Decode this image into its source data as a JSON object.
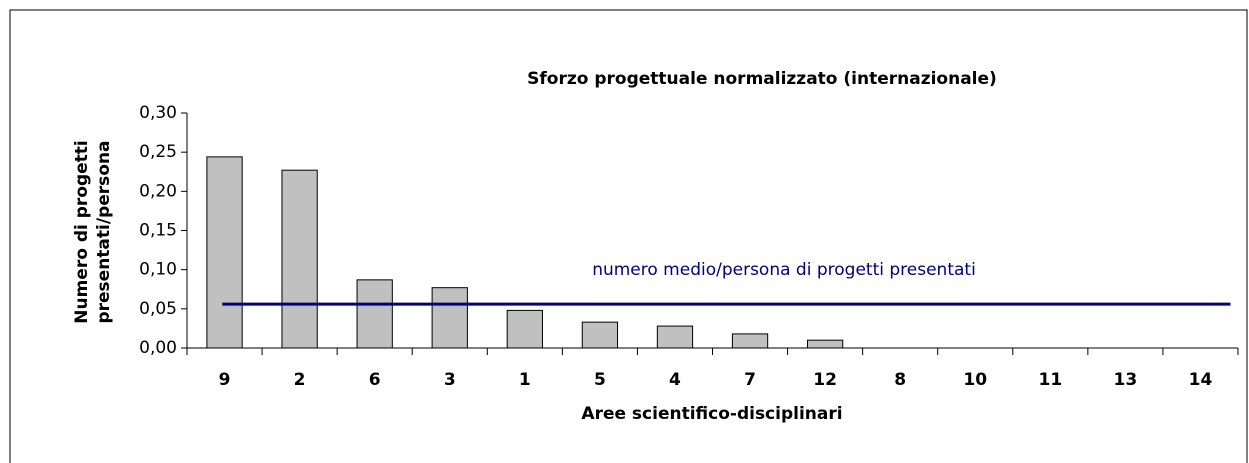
{
  "chart_data": {
    "type": "bar",
    "title": "Sforzo progettuale normalizzato (internazionale)",
    "xlabel": "Aree scientifico-disciplinari",
    "ylabel": [
      "Numero di progetti",
      "presentati/persona"
    ],
    "categories": [
      "9",
      "2",
      "6",
      "3",
      "1",
      "5",
      "4",
      "7",
      "12",
      "8",
      "10",
      "11",
      "13",
      "14"
    ],
    "values": [
      0.244,
      0.227,
      0.087,
      0.077,
      0.048,
      0.033,
      0.028,
      0.018,
      0.01,
      0,
      0,
      0,
      0,
      0
    ],
    "color": "#c0c0c0",
    "ylim": [
      0,
      0.3
    ],
    "yticks": [
      {
        "value": 0,
        "label": "0,00"
      },
      {
        "value": 0.05,
        "label": "0,05"
      },
      {
        "value": 0.1,
        "label": "0,10"
      },
      {
        "value": 0.15,
        "label": "0,15"
      },
      {
        "value": 0.2,
        "label": "0,20"
      },
      {
        "value": 0.25,
        "label": "0,25"
      },
      {
        "value": 0.3,
        "label": "0,30"
      }
    ],
    "mean_line": {
      "value": 0.056,
      "label": "numero medio/persona di progetti presentati",
      "color": "#000080"
    }
  }
}
